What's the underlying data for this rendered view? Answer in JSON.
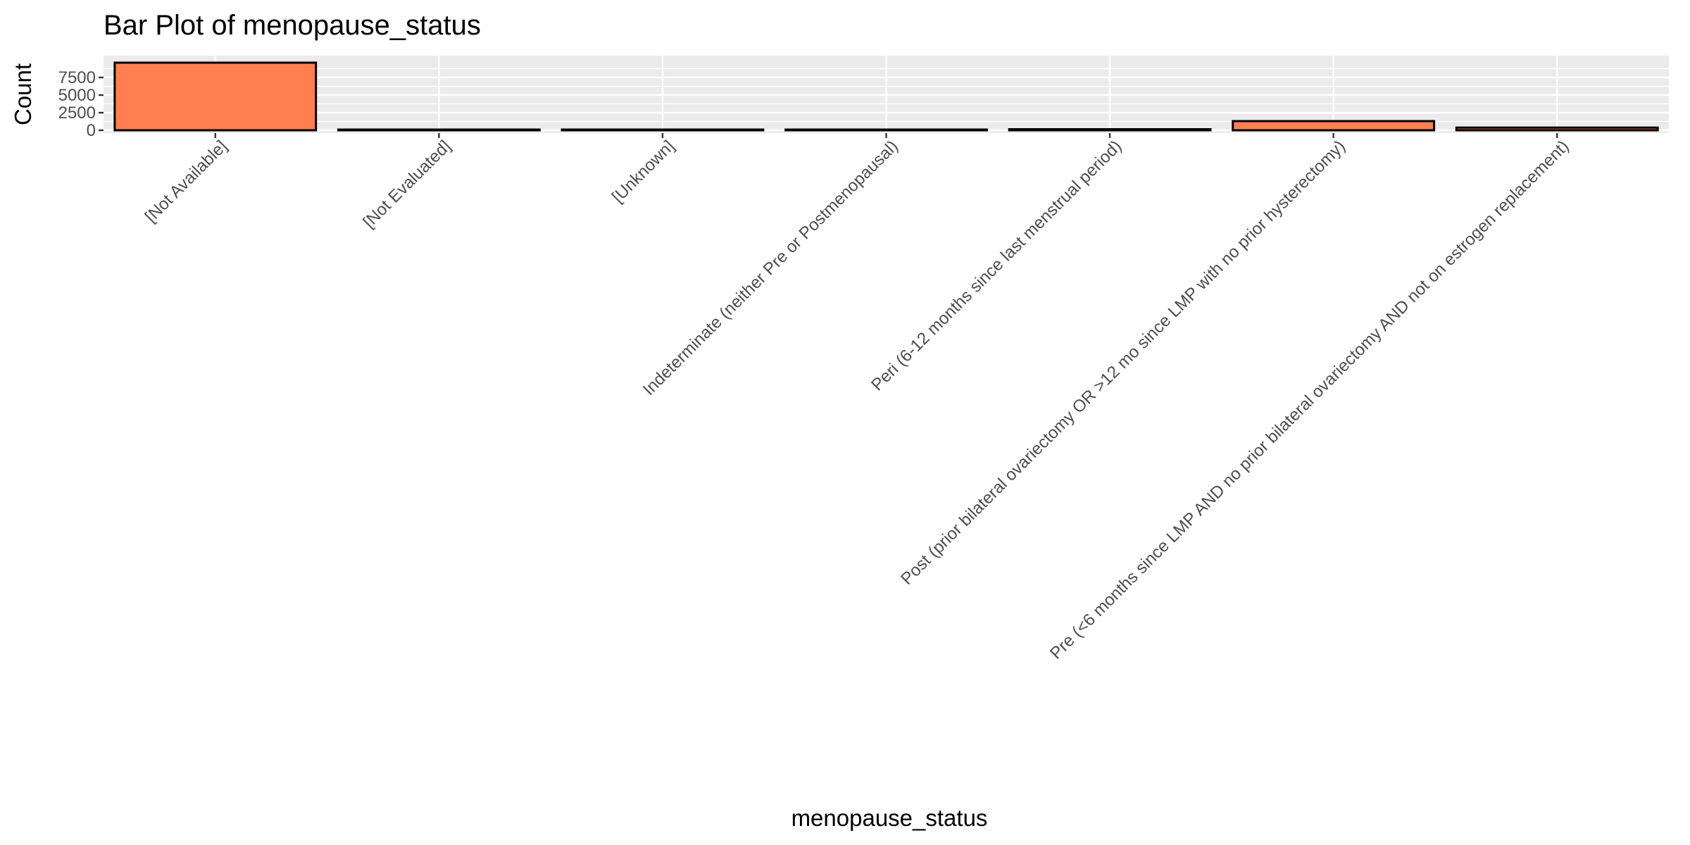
{
  "chart_data": {
    "type": "bar",
    "title": "Bar Plot of menopause_status",
    "xlabel": "menopause_status",
    "ylabel": "Count",
    "categories": [
      "[Not Available]",
      "[Not Evaluated]",
      "[Unknown]",
      "Indeterminate (neither Pre or Postmenopausal)",
      "Peri (6-12 months since last menstrual period)",
      "Post (prior bilateral ovariectomy OR >12 mo since LMP with no prior hysterectomy)",
      "Pre (<6 months since LMP AND no prior bilateral ovariectomy AND not on estrogen replacement)"
    ],
    "values": [
      9600,
      40,
      70,
      80,
      150,
      1300,
      380
    ],
    "yticks": [
      0,
      2500,
      5000,
      7500
    ],
    "ytick_labels": [
      "0",
      "2500",
      "5000",
      "7500"
    ],
    "ylim": [
      0,
      10100
    ],
    "grid": true,
    "legend": "none",
    "bar_fill": "#FF7F50",
    "bar_stroke": "#000000",
    "panel_background": "#EBEBEB",
    "gridline_color": "#FFFFFF"
  }
}
